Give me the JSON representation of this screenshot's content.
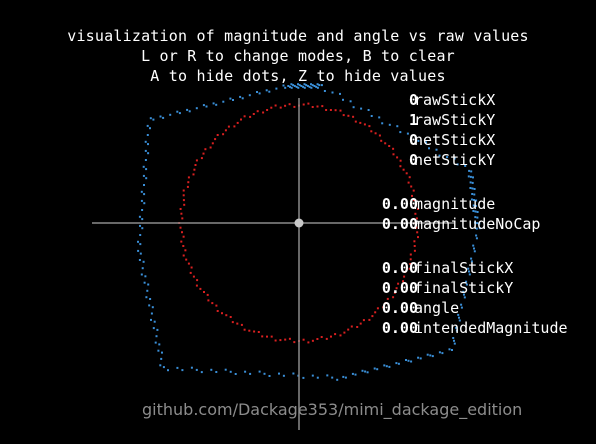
{
  "header": {
    "line1": "visualization of magnitude and angle vs raw values",
    "line2": "L or R to change modes, B to clear",
    "line3": "A to hide dots, Z to hide values"
  },
  "readouts": [
    {
      "value": "0",
      "label": "rawStickX"
    },
    {
      "value": "1",
      "label": "rawStickY"
    },
    {
      "value": "0",
      "label": "netStickX"
    },
    {
      "value": "0",
      "label": "netStickY"
    },
    {
      "value": "0.00",
      "label": "magnitude"
    },
    {
      "value": "0.00",
      "label": "magnitudeNoCap"
    },
    {
      "value": "0.00",
      "label": "finalStickX"
    },
    {
      "value": "0.00",
      "label": "finalStickY"
    },
    {
      "value": "0.00",
      "label": "angle"
    },
    {
      "value": "0.00",
      "label": "intendedMagnitude"
    }
  ],
  "watermark": "github.com/Dackage353/mimi_dackage_edition",
  "colors": {
    "background": "#000000",
    "text": "#ffffff",
    "axis": "#8a8a8a",
    "raw_dots": "#3a8fd8",
    "magnitude_dots": "#d92020",
    "center_dot": "#c8c8c8",
    "watermark": "#8c8c8c"
  }
}
